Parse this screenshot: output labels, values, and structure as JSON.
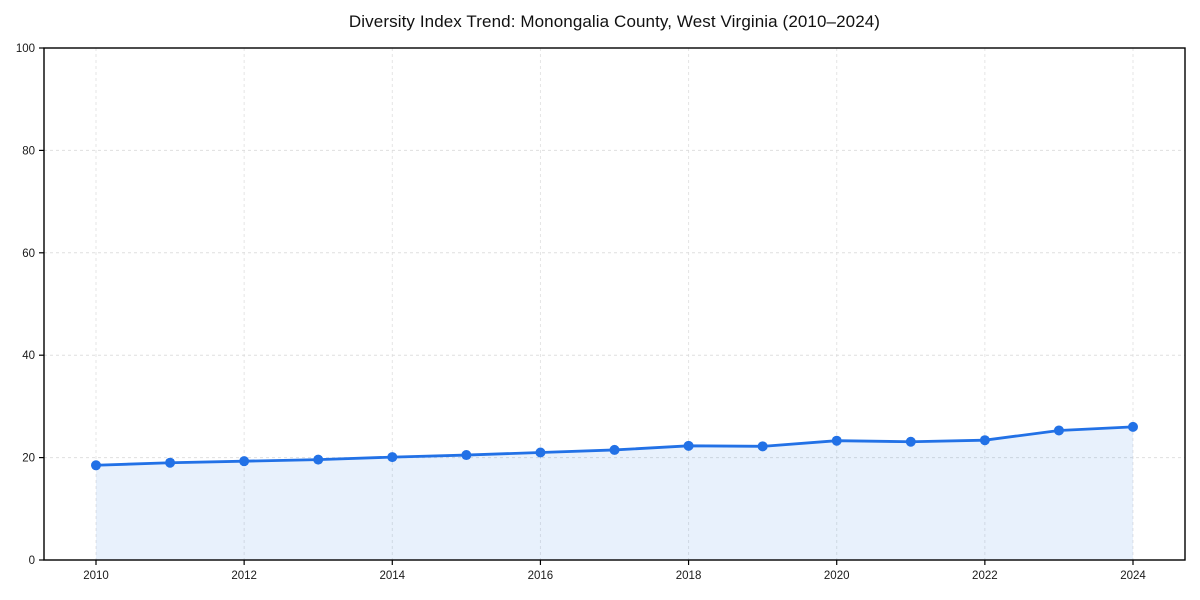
{
  "chart_data": {
    "type": "area",
    "title": "Diversity Index Trend: Monongalia County, West Virginia (2010–2024)",
    "series_name": "Diversity Index",
    "x": [
      2010,
      2011,
      2012,
      2013,
      2014,
      2015,
      2016,
      2017,
      2018,
      2019,
      2020,
      2021,
      2022,
      2023,
      2024
    ],
    "values": [
      18.5,
      19.0,
      19.3,
      19.6,
      20.1,
      20.5,
      21.0,
      21.5,
      22.3,
      22.2,
      23.3,
      23.1,
      23.4,
      25.3,
      26.0
    ],
    "xlabel": "",
    "ylabel": "",
    "ylim": [
      0,
      100
    ],
    "y_ticks": [
      0,
      20,
      40,
      60,
      80,
      100
    ],
    "x_ticks": [
      2010,
      2012,
      2014,
      2016,
      2018,
      2020,
      2022,
      2024
    ],
    "grid": "dashed",
    "legend": "none",
    "colors": {
      "line": "#2271e6",
      "marker": "#2271e6",
      "fill": "rgba(34,113,230,0.10)",
      "grid": "#dcdcdc",
      "spine": "#000000",
      "text": "#1a1a1a",
      "background": "#ffffff"
    }
  }
}
